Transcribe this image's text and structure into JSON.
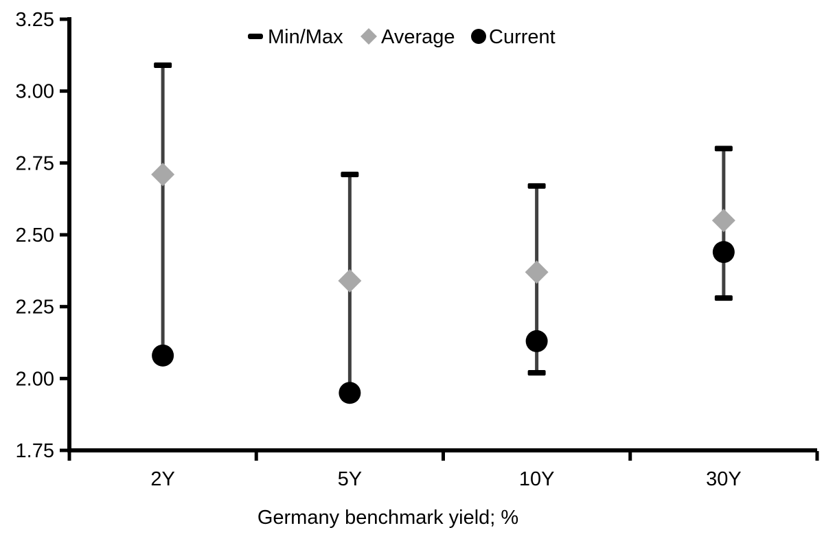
{
  "chart_data": {
    "type": "scatter",
    "subtype": "min-max-range",
    "title": "",
    "xlabel": "Germany benchmark yield; %",
    "ylabel": "",
    "categories": [
      "2Y",
      "5Y",
      "10Y",
      "30Y"
    ],
    "ylim": [
      1.75,
      3.25
    ],
    "ytick_step": 0.25,
    "ytick_labels": [
      "3.25",
      "3.00",
      "2.75",
      "2.50",
      "2.25",
      "2.00",
      "1.75"
    ],
    "grid": false,
    "legend_position": "top-center",
    "series": [
      {
        "name": "Min/Max",
        "marker": "dash",
        "marker_color": "#000000",
        "line_color": "#404040",
        "max": [
          3.09,
          2.71,
          2.67,
          2.8
        ],
        "min": [
          2.08,
          1.95,
          2.02,
          2.28
        ]
      },
      {
        "name": "Average",
        "marker": "diamond",
        "marker_color": "#a8a8a8",
        "values": [
          2.71,
          2.34,
          2.37,
          2.55
        ]
      },
      {
        "name": "Current",
        "marker": "circle",
        "marker_color": "#000000",
        "values": [
          2.08,
          1.95,
          2.13,
          2.44
        ]
      }
    ],
    "colors": {
      "axis": "#000000",
      "text": "#000000",
      "background": "#ffffff"
    }
  }
}
